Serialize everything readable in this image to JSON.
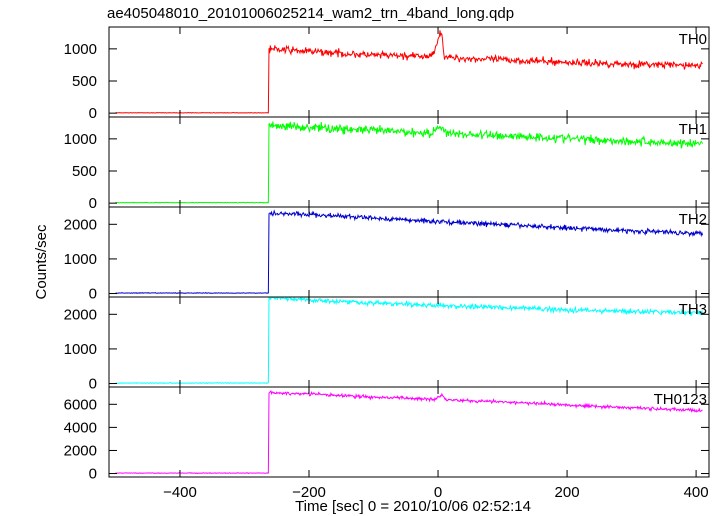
{
  "chart_data": {
    "type": "line",
    "title": "ae405048010_20101006025214_wam2_trn_4band_long.qdp",
    "xlabel": "Time [sec] 0 = 2010/10/06 02:52:14",
    "ylabel": "Counts/sec",
    "xlim": [
      -510,
      420
    ],
    "x_ticks": [
      -400,
      -200,
      0,
      200,
      400
    ],
    "x_tick_labels": [
      "−400",
      "−200",
      "0",
      "200",
      "400"
    ],
    "shared_x": true,
    "grid": false,
    "panels": [
      {
        "name": "TH0",
        "color": "#ff0000",
        "ylim": [
          -60,
          1340
        ],
        "y_ticks": [
          0,
          500,
          1000
        ],
        "y_tick_labels": [
          "0",
          "500",
          "1000"
        ],
        "x_start": -500,
        "x_end": 410,
        "onset_x": -262,
        "background": 5,
        "noise": 28,
        "points": [
          [
            -262,
            1000
          ],
          [
            -200,
            960
          ],
          [
            -100,
            900
          ],
          [
            -10,
            880
          ],
          [
            0,
            1150
          ],
          [
            5,
            1280
          ],
          [
            10,
            880
          ],
          [
            20,
            860
          ],
          [
            100,
            830
          ],
          [
            200,
            790
          ],
          [
            300,
            760
          ],
          [
            410,
            740
          ]
        ]
      },
      {
        "name": "TH1",
        "color": "#00ff00",
        "ylim": [
          -60,
          1340
        ],
        "y_ticks": [
          0,
          500,
          1000
        ],
        "y_tick_labels": [
          "0",
          "500",
          "1000"
        ],
        "x_start": -500,
        "x_end": 410,
        "onset_x": -262,
        "background": 8,
        "noise": 35,
        "points": [
          [
            -262,
            1210
          ],
          [
            -200,
            1180
          ],
          [
            -100,
            1130
          ],
          [
            -10,
            1090
          ],
          [
            5,
            1200
          ],
          [
            15,
            1080
          ],
          [
            100,
            1050
          ],
          [
            200,
            1010
          ],
          [
            300,
            960
          ],
          [
            410,
            920
          ]
        ]
      },
      {
        "name": "TH2",
        "color": "#0000cc",
        "ylim": [
          -100,
          2500
        ],
        "y_ticks": [
          0,
          1000,
          2000
        ],
        "y_tick_labels": [
          "0",
          "1000",
          "2000"
        ],
        "x_start": -500,
        "x_end": 410,
        "onset_x": -262,
        "background": 15,
        "noise": 35,
        "points": [
          [
            -262,
            2330
          ],
          [
            -200,
            2280
          ],
          [
            -100,
            2180
          ],
          [
            0,
            2080
          ],
          [
            100,
            1990
          ],
          [
            200,
            1900
          ],
          [
            300,
            1810
          ],
          [
            410,
            1740
          ]
        ]
      },
      {
        "name": "TH3",
        "color": "#00ffff",
        "ylim": [
          -100,
          2500
        ],
        "y_ticks": [
          0,
          1000,
          2000
        ],
        "y_tick_labels": [
          "0",
          "1000",
          "2000"
        ],
        "x_start": -500,
        "x_end": 410,
        "onset_x": -262,
        "background": 15,
        "noise": 35,
        "points": [
          [
            -262,
            2480
          ],
          [
            -200,
            2420
          ],
          [
            -100,
            2330
          ],
          [
            0,
            2250
          ],
          [
            100,
            2200
          ],
          [
            200,
            2130
          ],
          [
            300,
            2080
          ],
          [
            410,
            2040
          ]
        ]
      },
      {
        "name": "TH0123",
        "color": "#ff00ff",
        "ylim": [
          -300,
          7500
        ],
        "y_ticks": [
          0,
          2000,
          4000,
          6000
        ],
        "y_tick_labels": [
          "0",
          "2000",
          "4000",
          "6000"
        ],
        "x_start": -500,
        "x_end": 410,
        "onset_x": -262,
        "background": 40,
        "noise": 70,
        "points": [
          [
            -262,
            7000
          ],
          [
            -200,
            6900
          ],
          [
            -100,
            6620
          ],
          [
            -5,
            6450
          ],
          [
            5,
            6820
          ],
          [
            15,
            6400
          ],
          [
            100,
            6200
          ],
          [
            200,
            5950
          ],
          [
            300,
            5700
          ],
          [
            410,
            5450
          ]
        ]
      }
    ]
  }
}
